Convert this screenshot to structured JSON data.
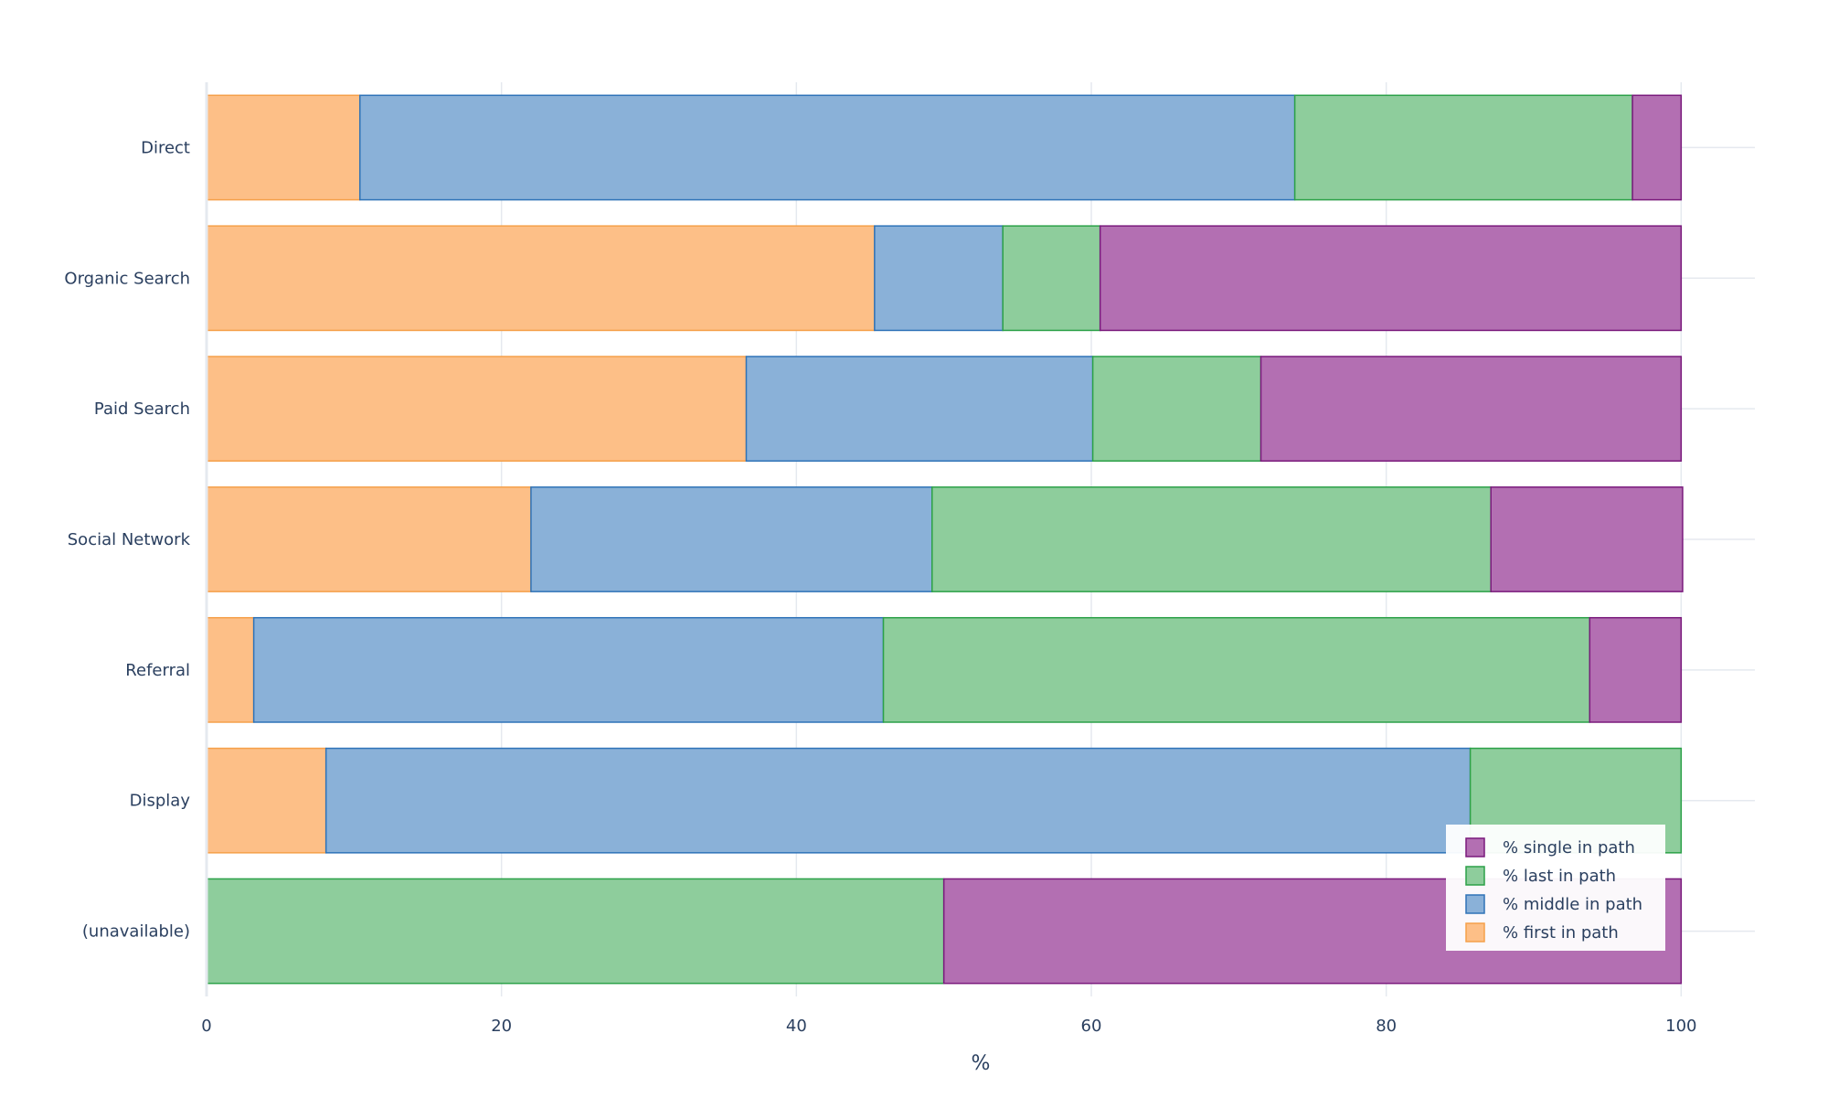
{
  "chart_data": {
    "type": "bar",
    "orientation": "horizontal",
    "barmode": "stack",
    "categories": [
      "Direct",
      "Organic Search",
      "Paid Search",
      "Social Network",
      "Referral",
      "Display",
      "(unavailable)"
    ],
    "series": [
      {
        "name": "% first in path",
        "color": "#fdbf87",
        "line_color": "#f5a04a",
        "values": [
          10.4,
          45.3,
          36.6,
          22.0,
          3.2,
          8.1,
          0.0
        ]
      },
      {
        "name": "% middle in path",
        "color": "#8ab1d8",
        "line_color": "#2f73b8",
        "values": [
          63.4,
          8.7,
          23.5,
          27.2,
          42.7,
          77.6,
          0.0
        ]
      },
      {
        "name": "% last in path",
        "color": "#8ecd9c",
        "line_color": "#2ca148",
        "values": [
          22.9,
          6.6,
          11.4,
          37.9,
          47.9,
          14.3,
          50.0
        ]
      },
      {
        "name": "% single in path",
        "color": "#b36fb2",
        "line_color": "#7a1a7c",
        "values": [
          3.3,
          39.4,
          28.5,
          13.0,
          6.2,
          0.0,
          50.0
        ]
      }
    ],
    "x_ticks": [
      0,
      20,
      40,
      60,
      80,
      100
    ],
    "xlim": [
      0,
      105
    ],
    "xlabel": "%",
    "grid": true,
    "legend_position": "bottom-right"
  }
}
